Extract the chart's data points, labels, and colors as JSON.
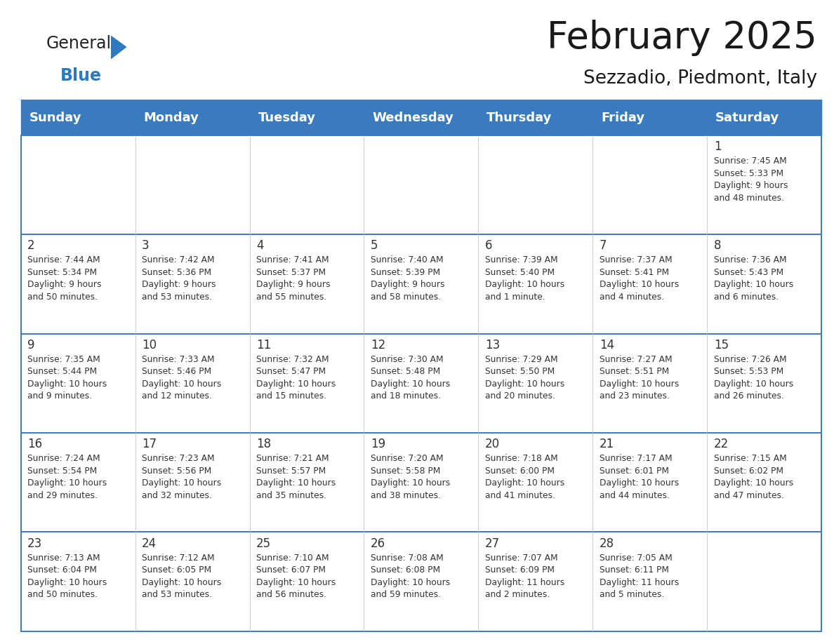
{
  "title": "February 2025",
  "subtitle": "Sezzadio, Piedmont, Italy",
  "header_bg": "#3a7abf",
  "header_text": "#ffffff",
  "grid_line_color": "#3a7abf",
  "cell_line_color": "#aaaaaa",
  "day_headers": [
    "Sunday",
    "Monday",
    "Tuesday",
    "Wednesday",
    "Thursday",
    "Friday",
    "Saturday"
  ],
  "weeks": [
    [
      {
        "day": "",
        "info": ""
      },
      {
        "day": "",
        "info": ""
      },
      {
        "day": "",
        "info": ""
      },
      {
        "day": "",
        "info": ""
      },
      {
        "day": "",
        "info": ""
      },
      {
        "day": "",
        "info": ""
      },
      {
        "day": "1",
        "info": "Sunrise: 7:45 AM\nSunset: 5:33 PM\nDaylight: 9 hours\nand 48 minutes."
      }
    ],
    [
      {
        "day": "2",
        "info": "Sunrise: 7:44 AM\nSunset: 5:34 PM\nDaylight: 9 hours\nand 50 minutes."
      },
      {
        "day": "3",
        "info": "Sunrise: 7:42 AM\nSunset: 5:36 PM\nDaylight: 9 hours\nand 53 minutes."
      },
      {
        "day": "4",
        "info": "Sunrise: 7:41 AM\nSunset: 5:37 PM\nDaylight: 9 hours\nand 55 minutes."
      },
      {
        "day": "5",
        "info": "Sunrise: 7:40 AM\nSunset: 5:39 PM\nDaylight: 9 hours\nand 58 minutes."
      },
      {
        "day": "6",
        "info": "Sunrise: 7:39 AM\nSunset: 5:40 PM\nDaylight: 10 hours\nand 1 minute."
      },
      {
        "day": "7",
        "info": "Sunrise: 7:37 AM\nSunset: 5:41 PM\nDaylight: 10 hours\nand 4 minutes."
      },
      {
        "day": "8",
        "info": "Sunrise: 7:36 AM\nSunset: 5:43 PM\nDaylight: 10 hours\nand 6 minutes."
      }
    ],
    [
      {
        "day": "9",
        "info": "Sunrise: 7:35 AM\nSunset: 5:44 PM\nDaylight: 10 hours\nand 9 minutes."
      },
      {
        "day": "10",
        "info": "Sunrise: 7:33 AM\nSunset: 5:46 PM\nDaylight: 10 hours\nand 12 minutes."
      },
      {
        "day": "11",
        "info": "Sunrise: 7:32 AM\nSunset: 5:47 PM\nDaylight: 10 hours\nand 15 minutes."
      },
      {
        "day": "12",
        "info": "Sunrise: 7:30 AM\nSunset: 5:48 PM\nDaylight: 10 hours\nand 18 minutes."
      },
      {
        "day": "13",
        "info": "Sunrise: 7:29 AM\nSunset: 5:50 PM\nDaylight: 10 hours\nand 20 minutes."
      },
      {
        "day": "14",
        "info": "Sunrise: 7:27 AM\nSunset: 5:51 PM\nDaylight: 10 hours\nand 23 minutes."
      },
      {
        "day": "15",
        "info": "Sunrise: 7:26 AM\nSunset: 5:53 PM\nDaylight: 10 hours\nand 26 minutes."
      }
    ],
    [
      {
        "day": "16",
        "info": "Sunrise: 7:24 AM\nSunset: 5:54 PM\nDaylight: 10 hours\nand 29 minutes."
      },
      {
        "day": "17",
        "info": "Sunrise: 7:23 AM\nSunset: 5:56 PM\nDaylight: 10 hours\nand 32 minutes."
      },
      {
        "day": "18",
        "info": "Sunrise: 7:21 AM\nSunset: 5:57 PM\nDaylight: 10 hours\nand 35 minutes."
      },
      {
        "day": "19",
        "info": "Sunrise: 7:20 AM\nSunset: 5:58 PM\nDaylight: 10 hours\nand 38 minutes."
      },
      {
        "day": "20",
        "info": "Sunrise: 7:18 AM\nSunset: 6:00 PM\nDaylight: 10 hours\nand 41 minutes."
      },
      {
        "day": "21",
        "info": "Sunrise: 7:17 AM\nSunset: 6:01 PM\nDaylight: 10 hours\nand 44 minutes."
      },
      {
        "day": "22",
        "info": "Sunrise: 7:15 AM\nSunset: 6:02 PM\nDaylight: 10 hours\nand 47 minutes."
      }
    ],
    [
      {
        "day": "23",
        "info": "Sunrise: 7:13 AM\nSunset: 6:04 PM\nDaylight: 10 hours\nand 50 minutes."
      },
      {
        "day": "24",
        "info": "Sunrise: 7:12 AM\nSunset: 6:05 PM\nDaylight: 10 hours\nand 53 minutes."
      },
      {
        "day": "25",
        "info": "Sunrise: 7:10 AM\nSunset: 6:07 PM\nDaylight: 10 hours\nand 56 minutes."
      },
      {
        "day": "26",
        "info": "Sunrise: 7:08 AM\nSunset: 6:08 PM\nDaylight: 10 hours\nand 59 minutes."
      },
      {
        "day": "27",
        "info": "Sunrise: 7:07 AM\nSunset: 6:09 PM\nDaylight: 11 hours\nand 2 minutes."
      },
      {
        "day": "28",
        "info": "Sunrise: 7:05 AM\nSunset: 6:11 PM\nDaylight: 11 hours\nand 5 minutes."
      },
      {
        "day": "",
        "info": ""
      }
    ]
  ],
  "logo_triangle_color": "#2e7abf",
  "title_fontsize": 38,
  "subtitle_fontsize": 19,
  "header_fontsize": 13,
  "day_num_fontsize": 12,
  "info_fontsize": 8.8,
  "text_color": "#333333"
}
